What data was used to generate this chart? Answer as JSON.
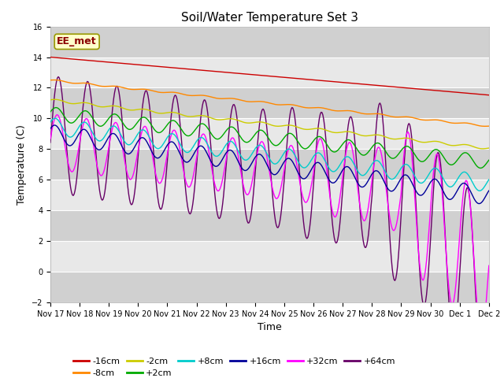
{
  "title": "Soil/Water Temperature Set 3",
  "xlabel": "Time",
  "ylabel": "Temperature (C)",
  "ylim": [
    -2,
    16
  ],
  "yticks": [
    -2,
    0,
    2,
    4,
    6,
    8,
    10,
    12,
    14,
    16
  ],
  "annotation": "EE_met",
  "annotation_color": "#8b0000",
  "annotation_bg": "#ffffcc",
  "annotation_edge": "#999900",
  "fig_facecolor": "#ffffff",
  "plot_facecolor": "#e8e8e8",
  "band_colors": [
    "#d0d0d0",
    "#e8e8e8"
  ],
  "grid_color": "#ffffff",
  "series_colors": {
    "-16cm": "#cc0000",
    "-8cm": "#ff8800",
    "-2cm": "#cccc00",
    "+2cm": "#00aa00",
    "+8cm": "#00cccc",
    "+16cm": "#000099",
    "+32cm": "#ff00ff",
    "+64cm": "#660066"
  },
  "num_points": 500,
  "tick_fontsize": 7,
  "label_fontsize": 9,
  "title_fontsize": 11,
  "legend_fontsize": 8,
  "lw": 1.0
}
